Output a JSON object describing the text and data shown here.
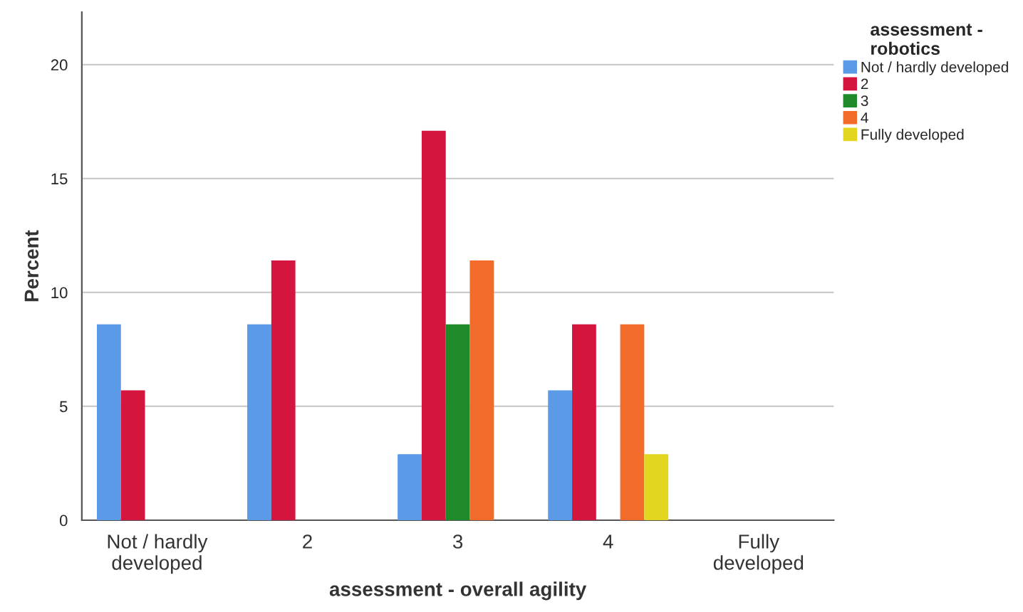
{
  "chart_data": {
    "type": "bar",
    "xlabel": "assessment - overall agility",
    "ylabel": "Percent",
    "legend_title": "assessment -\nrobotics",
    "categories": [
      "Not / hardly\ndeveloped",
      "2",
      "3",
      "4",
      "Fully\ndeveloped"
    ],
    "series": [
      {
        "name": "Not / hardly developed",
        "color": "#5a9ae6",
        "values": [
          8.6,
          8.6,
          2.9,
          5.7,
          null
        ]
      },
      {
        "name": "2",
        "color": "#d4163f",
        "values": [
          5.7,
          11.4,
          17.1,
          8.6,
          null
        ]
      },
      {
        "name": "3",
        "color": "#1f8a2a",
        "values": [
          null,
          null,
          8.6,
          null,
          null
        ]
      },
      {
        "name": "4",
        "color": "#f26b2a",
        "values": [
          null,
          null,
          11.4,
          8.6,
          null
        ]
      },
      {
        "name": "Fully developed",
        "color": "#e3d61e",
        "values": [
          null,
          null,
          null,
          2.9,
          null
        ]
      }
    ],
    "ylim": [
      0,
      22.3
    ],
    "yticks": [
      0,
      5,
      10,
      15,
      20
    ],
    "grid": "y",
    "legend": "top right"
  }
}
